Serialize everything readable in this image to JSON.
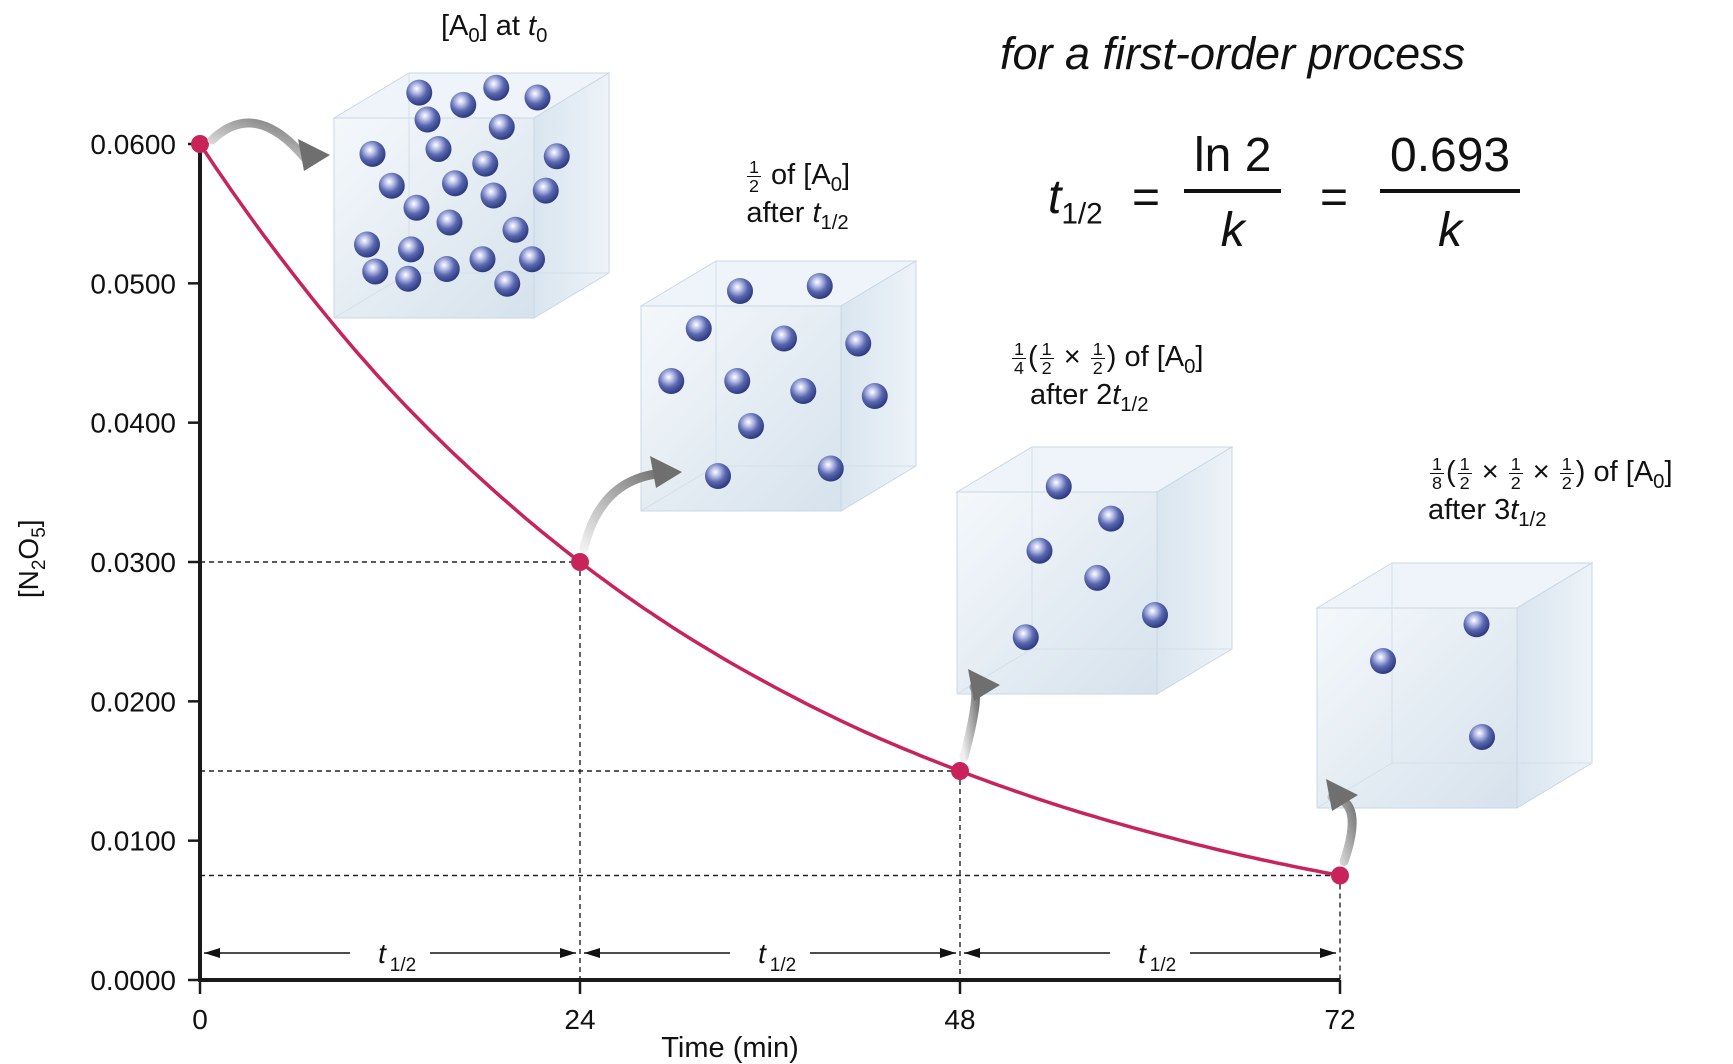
{
  "chart_data": {
    "type": "line",
    "xlabel": "Time (min)",
    "ylabel_main": "[N",
    "ylabel_sub1": "2",
    "ylabel_mid": "O",
    "ylabel_sub2": "5",
    "ylabel_end": "]",
    "x_ticks": [
      "0",
      "24",
      "48",
      "72"
    ],
    "x_tick_values": [
      0,
      24,
      48,
      72
    ],
    "y_ticks": [
      "0.0000",
      "0.0100",
      "0.0200",
      "0.0300",
      "0.0400",
      "0.0500",
      "0.0600"
    ],
    "y_tick_values": [
      0.0,
      0.01,
      0.02,
      0.03,
      0.04,
      0.05,
      0.06
    ],
    "xlim": [
      0,
      72
    ],
    "ylim": [
      0,
      0.06
    ],
    "grid": false,
    "series": [
      {
        "x": [
          0,
          6,
          12,
          18,
          24,
          30,
          36,
          42,
          48,
          54,
          60,
          66,
          72
        ],
        "values": [
          0.06,
          0.0505,
          0.0424,
          0.0357,
          0.03,
          0.0252,
          0.0212,
          0.0178,
          0.015,
          0.0126,
          0.0106,
          0.0089,
          0.0075
        ]
      }
    ],
    "highlight_points": [
      {
        "x": 0,
        "y": 0.06
      },
      {
        "x": 24,
        "y": 0.03
      },
      {
        "x": 48,
        "y": 0.015
      },
      {
        "x": 72,
        "y": 0.0075
      }
    ],
    "half_life_label": "t",
    "half_life_sub": "1/2",
    "line_color": "#c8245a",
    "axis_color": "#1a1a1a"
  },
  "annotations": {
    "a0": {
      "pre": "[A",
      "sub": "0",
      "mid": "] at ",
      "t": "t",
      "tsub": "0"
    },
    "half": {
      "num": "1",
      "den": "2",
      "text": " of [A",
      "sub": "0",
      "end": "]",
      "after": "after ",
      "t": "t",
      "tsub": "1/2"
    },
    "quarter": {
      "num": "1",
      "den": "4",
      "open": "(",
      "n1": "1",
      "d1": "2",
      "times": " × ",
      "n2": "1",
      "d2": "2",
      "close": ")",
      "text": " of [A",
      "sub": "0",
      "end": "]",
      "after": "after 2",
      "t": "t",
      "tsub": "1/2"
    },
    "eighth": {
      "num": "1",
      "den": "8",
      "open": "(",
      "n1": "1",
      "d1": "2",
      "times1": " × ",
      "n2": "1",
      "d2": "2",
      "times2": " × ",
      "n3": "1",
      "d3": "2",
      "close": ")",
      "text": " of [A",
      "sub": "0",
      "end": "]",
      "after": "after 3",
      "t": "t",
      "tsub": "1/2"
    }
  },
  "formula": {
    "title": "for a first-order process",
    "lhs": "t",
    "lhs_sub": "1/2",
    "eq": "=",
    "num1": "ln 2",
    "den1": "k",
    "num2": "0.693",
    "den2": "k"
  },
  "colors": {
    "box_face": "#dfe9f2",
    "box_edge": "#c3d3e2",
    "molecule": "#5967b0"
  }
}
